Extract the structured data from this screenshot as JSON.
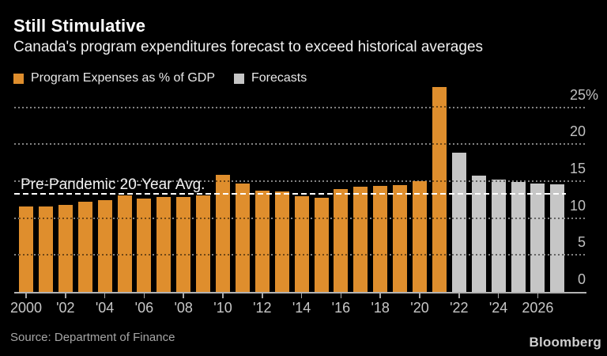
{
  "chart_data": {
    "type": "bar",
    "title": "Still Stimulative",
    "subtitle": "Canada's program expenditures forecast to exceed historical averages",
    "units": "% of GDP",
    "categories": [
      2000,
      2001,
      2002,
      2003,
      2004,
      2005,
      2006,
      2007,
      2008,
      2009,
      2010,
      2011,
      2012,
      2013,
      2014,
      2015,
      2016,
      2017,
      2018,
      2019,
      2020,
      2021,
      2022,
      2023,
      2024,
      2025,
      2026,
      2027
    ],
    "values": [
      11.6,
      11.6,
      11.8,
      12.2,
      12.4,
      13.1,
      12.6,
      12.8,
      12.9,
      13.1,
      15.8,
      14.7,
      13.7,
      13.6,
      13.0,
      12.7,
      13.9,
      14.2,
      14.3,
      14.5,
      15.0,
      27.7,
      18.8,
      15.7,
      15.2,
      14.9,
      14.7,
      14.6
    ],
    "series": [
      {
        "name": "Program Expenses as % of GDP",
        "color": "#DF8E2D"
      },
      {
        "name": "Forecasts",
        "color": "#C6C6C6"
      }
    ],
    "forecast_start_year": 2022,
    "average_line": {
      "label": "Pre-Pandemic 20-Year Avg.",
      "value": 13.3,
      "style": "dashed-white"
    },
    "yticks": [
      {
        "value": 25,
        "label": "25%"
      },
      {
        "value": 20,
        "label": "20"
      },
      {
        "value": 15,
        "label": "15"
      },
      {
        "value": 10,
        "label": "10"
      },
      {
        "value": 5,
        "label": "5"
      },
      {
        "value": 0,
        "label": "0"
      }
    ],
    "xticks": [
      {
        "year": 2000,
        "label": "2000"
      },
      {
        "year": 2002,
        "label": "'02"
      },
      {
        "year": 2004,
        "label": "'04"
      },
      {
        "year": 2006,
        "label": "'06"
      },
      {
        "year": 2008,
        "label": "'08"
      },
      {
        "year": 2010,
        "label": "'10"
      },
      {
        "year": 2012,
        "label": "'12"
      },
      {
        "year": 2014,
        "label": "'14"
      },
      {
        "year": 2016,
        "label": "'16"
      },
      {
        "year": 2018,
        "label": "'18"
      },
      {
        "year": 2020,
        "label": "'20"
      },
      {
        "year": 2022,
        "label": "'22"
      },
      {
        "year": 2024,
        "label": "'24"
      },
      {
        "year": 2026,
        "label": "2026"
      }
    ],
    "ylim": [
      0,
      28
    ],
    "grid": "horizontal-dotted",
    "legend_position": "top-left",
    "axis_side": "right"
  },
  "footer": {
    "source": "Source: Department of Finance",
    "brand": "Bloomberg"
  }
}
